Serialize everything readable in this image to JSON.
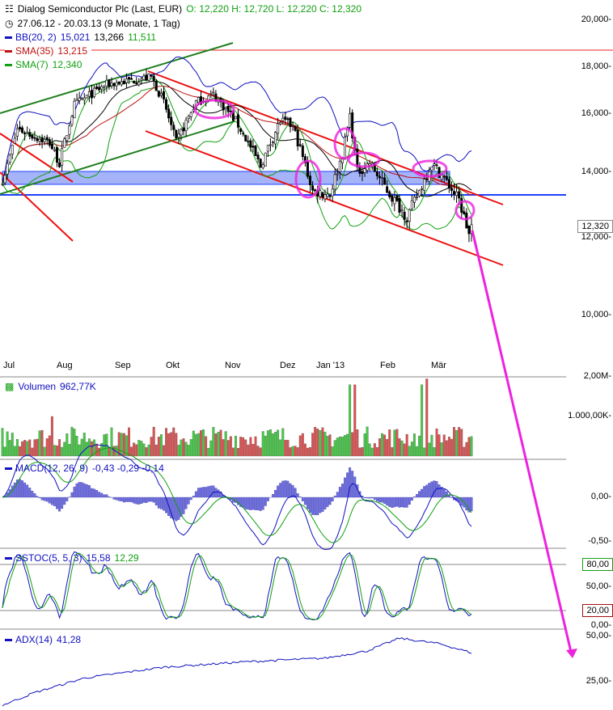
{
  "header": {
    "title": "Dialog Semiconductor Plc (Last, EUR)",
    "ohlc": "O: 12,220  H: 12,720  L: 12,220  C: 12,320",
    "range": "27.06.12 - 20.03.13 (9 Monate, 1 Tag)"
  },
  "legend": {
    "bb": "BB(20, 2)",
    "bb_upper": "15,021",
    "bb_mid": "13,266",
    "bb_lower": "11,511",
    "sma35": "SMA(35)",
    "sma35_val": "13,215",
    "sma7": "SMA(7)",
    "sma7_val": "12,340"
  },
  "panels": {
    "volume": "Volumen",
    "volume_val": "962,77K",
    "macd": "MACD(12, 26, 9)",
    "macd_vals": "-0,43  -0,29  -0,14",
    "sstoc": "SSTOC(5, 5, 3)",
    "sstoc_k": "15,58",
    "sstoc_d": "12,29",
    "adx": "ADX(14)",
    "adx_val": "41,28"
  },
  "colors": {
    "up": "#44cc44",
    "down": "#e05050",
    "bb": "#1010c0",
    "sma35": "#c01010",
    "sma7": "#10a010",
    "annot": "#ee22dd"
  },
  "chart_data": {
    "type": "candlestick",
    "title": "Dialog Semiconductor Plc (Last, EUR)",
    "x_ticks": [
      "Jul",
      "Aug",
      "Sep",
      "Okt",
      "Nov",
      "Dez",
      "Jan '13",
      "Feb",
      "Mär"
    ],
    "y_ticks": [
      "20,000-",
      "18,000-",
      "16,000-",
      "14,000-",
      "12,000-",
      "10,000-"
    ],
    "y_scale": "log",
    "ylim": [
      9.0,
      21.0
    ],
    "last_price_tag": "12,320",
    "days": 190,
    "close_anchors": [
      [
        0,
        13.8
      ],
      [
        2,
        14.2
      ],
      [
        6,
        15.5
      ],
      [
        19,
        15.0
      ],
      [
        23,
        14.3
      ],
      [
        29,
        16.4
      ],
      [
        42,
        17.2
      ],
      [
        60,
        17.5
      ],
      [
        65,
        16.5
      ],
      [
        70,
        15.0
      ],
      [
        78,
        16.5
      ],
      [
        85,
        16.8
      ],
      [
        94,
        15.8
      ],
      [
        104,
        14.2
      ],
      [
        112,
        15.8
      ],
      [
        117,
        15.6
      ],
      [
        125,
        13.4
      ],
      [
        132,
        13.3
      ],
      [
        137,
        14.6
      ],
      [
        140,
        16.0
      ],
      [
        143,
        14.0
      ],
      [
        148,
        14.3
      ],
      [
        156,
        13.3
      ],
      [
        163,
        12.6
      ],
      [
        168,
        13.4
      ],
      [
        173,
        14.3
      ],
      [
        177,
        13.9
      ],
      [
        184,
        13.1
      ],
      [
        188,
        12.1
      ],
      [
        189,
        12.32
      ]
    ],
    "volume": {
      "ticks": [
        "2,00M-",
        "1.000,00K-"
      ],
      "spikes": [
        [
          20,
          1.0
        ],
        [
          140,
          1.8
        ],
        [
          142,
          1.8
        ],
        [
          169,
          1.8
        ],
        [
          171,
          1.95
        ]
      ]
    },
    "macd": {
      "ticks": [
        "0,00-",
        "-0,50-"
      ]
    },
    "sstoc": {
      "ticks": [
        "50,00-",
        "0,00-"
      ],
      "levels": [
        "80,00",
        "20,00"
      ]
    },
    "adx": {
      "ticks": [
        "50,00-",
        "25,00-"
      ],
      "anchors": [
        [
          0,
          12
        ],
        [
          13,
          19
        ],
        [
          33,
          27
        ],
        [
          65,
          33
        ],
        [
          98,
          36
        ],
        [
          130,
          38
        ],
        [
          147,
          42
        ],
        [
          160,
          49
        ],
        [
          176,
          46
        ],
        [
          189,
          41
        ]
      ]
    }
  }
}
